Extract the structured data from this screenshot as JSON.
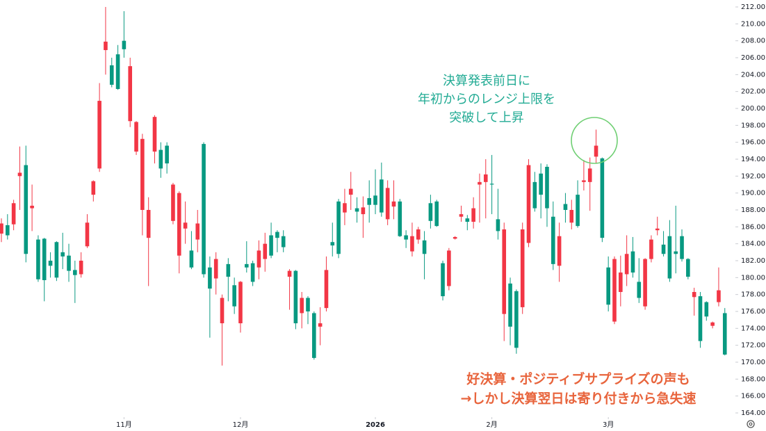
{
  "chart_data": {
    "type": "candlestick",
    "up_color": "#089981",
    "down_color": "#f23645",
    "ylim": [
      164,
      212
    ],
    "yticks": [
      {
        "value": 164,
        "label": "164.00"
      },
      {
        "value": 166,
        "label": "166.00"
      },
      {
        "value": 168,
        "label": "168.00"
      },
      {
        "value": 170,
        "label": "170.00"
      },
      {
        "value": 172,
        "label": "172.00"
      },
      {
        "value": 174,
        "label": "174.00"
      },
      {
        "value": 176,
        "label": "176.00"
      },
      {
        "value": 178,
        "label": "178.00"
      },
      {
        "value": 180,
        "label": "180.00"
      },
      {
        "value": 182,
        "label": "182.00"
      },
      {
        "value": 184,
        "label": "184.00"
      },
      {
        "value": 186,
        "label": "186.00"
      },
      {
        "value": 188,
        "label": "188.00"
      },
      {
        "value": 190,
        "label": "190.00"
      },
      {
        "value": 192,
        "label": "192.00"
      },
      {
        "value": 194,
        "label": "194.00"
      },
      {
        "value": 196,
        "label": "196.00"
      },
      {
        "value": 198,
        "label": "198.00"
      },
      {
        "value": 200,
        "label": "200.00"
      },
      {
        "value": 202,
        "label": "202.00"
      },
      {
        "value": 204,
        "label": "204.00"
      },
      {
        "value": 206,
        "label": "206.00"
      },
      {
        "value": 208,
        "label": "208.00"
      },
      {
        "value": 210,
        "label": "210.00"
      },
      {
        "value": 212,
        "label": "212.00"
      }
    ],
    "xticks": [
      {
        "value": 20,
        "label": "11月"
      },
      {
        "value": 39,
        "label": "12月"
      },
      {
        "value": 61,
        "label": "2026"
      },
      {
        "value": 80,
        "label": "2月"
      },
      {
        "value": 99,
        "label": "3月"
      }
    ],
    "open": [
      186.4,
      185,
      188.8,
      192.4,
      182.8,
      188.5,
      179.8,
      179.7,
      181.4,
      180,
      182.5,
      180.8,
      180.3,
      182,
      186.5,
      191.4,
      200.9,
      207.9,
      202.8,
      202.3,
      207,
      205,
      198.4,
      196.4,
      188,
      199,
      192.9,
      193.5,
      191,
      190,
      186.5,
      181.2,
      186.4,
      180.4,
      178.7,
      182.2,
      177.6,
      180.1,
      176.6,
      179.5,
      181.2,
      179.5,
      183.2,
      184,
      182.6,
      184.7,
      183.6,
      180.8,
      174.6,
      177.6,
      176,
      170.5,
      174.6,
      180.9,
      183.8,
      182.8,
      188.8,
      190.5,
      187.8,
      188.3,
      188.6,
      188.6,
      187.7,
      190.6,
      189,
      184.9,
      184.5,
      184.9,
      185.7,
      182.8,
      186.7,
      186.1,
      177.8,
      183.2,
      184.8,
      187.5,
      186.6,
      188.2,
      191.3,
      192.2,
      191,
      185.5,
      185.7,
      174.2,
      171.7,
      185.7,
      193.3,
      188.2,
      189.8,
      188.2,
      181.6,
      184.9,
      188,
      188,
      186.1,
      191.5,
      192.9,
      195.6,
      184.7,
      176.8,
      182.2,
      180.6,
      182.8,
      180.6,
      177.6,
      182.2,
      184.5,
      185.8,
      182.8,
      179.9,
      182.8,
      182.2,
      180.1,
      178.3,
      172.5,
      175.4,
      174.7,
      178.5,
      170.9
    ],
    "high": [
      187,
      187.5,
      189.2,
      195.5,
      195.6,
      191,
      185,
      184.7,
      183,
      184.3,
      185.3,
      184,
      182,
      183,
      187.5,
      191.5,
      203,
      212,
      206,
      207.5,
      211.5,
      206,
      198.5,
      197,
      189.5,
      199.2,
      196,
      196,
      191.2,
      190.2,
      189,
      185.5,
      188,
      196,
      182.5,
      183,
      178,
      182.3,
      180,
      179.6,
      184.3,
      182,
      184.4,
      185.3,
      186.5,
      185.6,
      185.6,
      181,
      180.9,
      178.3,
      177.8,
      176,
      176.5,
      182.5,
      186.5,
      189.3,
      190.5,
      192.5,
      189.5,
      189.6,
      191.5,
      192.8,
      193.6,
      191.5,
      191.5,
      189.3,
      185.6,
      186.5,
      186,
      185.5,
      189.8,
      189.2,
      182,
      183.5,
      184.9,
      188.5,
      187.4,
      189.5,
      192.3,
      194,
      194.5,
      190.5,
      186.5,
      180,
      178.6,
      186.5,
      194,
      192.5,
      193.5,
      193.4,
      189,
      186.5,
      190,
      189.2,
      191.5,
      193.9,
      194.2,
      197.5,
      194.2,
      182.5,
      182.5,
      182.6,
      185,
      184.8,
      182.3,
      182.3,
      185,
      187.2,
      185.5,
      186.8,
      188.5,
      185.7,
      182.3,
      178.8,
      178.3,
      177.2,
      174.8,
      181.2,
      176.4
    ],
    "low": [
      184.2,
      184.5,
      185.6,
      188,
      181.8,
      185.5,
      179.5,
      177.2,
      180,
      179.6,
      181,
      179.5,
      177,
      180,
      183.5,
      189,
      192.5,
      204,
      202.5,
      202.2,
      206,
      197.8,
      194.5,
      185,
      179,
      193.5,
      191.8,
      192.3,
      186.3,
      180.5,
      184,
      181,
      183,
      180,
      172.9,
      178,
      169.6,
      177.2,
      175.7,
      173.5,
      180.6,
      179,
      179.8,
      180.7,
      182.3,
      183,
      183,
      176.2,
      173.9,
      174,
      174.5,
      170.3,
      172,
      176,
      182.5,
      182.3,
      186.2,
      188,
      186.5,
      184.7,
      186.5,
      187.5,
      187.2,
      186.2,
      186.9,
      184.8,
      183.5,
      182.5,
      184,
      179.8,
      185.8,
      186,
      177.3,
      178.5,
      184.5,
      186.6,
      185.6,
      185.8,
      186.5,
      187,
      187.5,
      184.5,
      172.5,
      172,
      171,
      175.7,
      183.6,
      187.8,
      187,
      186,
      180.9,
      179.5,
      186.5,
      185.7,
      185.9,
      190.3,
      187.9,
      193.5,
      184.2,
      176,
      174.5,
      176.6,
      179,
      180,
      177,
      176.2,
      181.8,
      185,
      182.5,
      179.5,
      180.5,
      181.9,
      179.8,
      175.5,
      171.7,
      174.9,
      174,
      176.6,
      170.8
    ],
    "close": [
      185.2,
      186.2,
      186.3,
      192,
      193.3,
      188.2,
      184.5,
      184.6,
      182,
      184.2,
      183,
      182.6,
      180.9,
      180.4,
      183.7,
      189.8,
      192.9,
      206.9,
      205.1,
      206.4,
      208,
      198.5,
      194.9,
      188,
      184.7,
      194.9,
      195.1,
      195.6,
      186.7,
      182.6,
      185.8,
      183.2,
      184.5,
      195.8,
      181.2,
      179.9,
      174.6,
      181.6,
      179.1,
      174.6,
      181.6,
      181.7,
      181.2,
      182.2,
      185,
      185.4,
      184.9,
      180.1,
      180.8,
      175.8,
      177.6,
      175.8,
      174.2,
      176.4,
      184.2,
      189,
      187.7,
      189.8,
      188.2,
      187.5,
      189.4,
      189.7,
      191.6,
      186.9,
      188.4,
      189,
      185,
      183.1,
      184.5,
      184.4,
      188.8,
      189,
      181.7,
      179,
      184.6,
      187.2,
      187,
      186.6,
      191,
      191.3,
      191.1,
      186.9,
      175.7,
      179.3,
      178.4,
      176.5,
      184.1,
      191.3,
      192.3,
      193.1,
      187.2,
      181.4,
      188.7,
      186.5,
      189.8,
      191.3,
      191.3,
      194.3,
      194.1,
      181.2,
      174.8,
      178.3,
      180.4,
      183.1,
      179.5,
      176.6,
      182.2,
      185.6,
      183.9,
      184.9,
      183.1,
      184.9,
      182.2,
      177.7,
      177.8,
      177.1,
      174.3,
      177.1,
      175.8
    ],
    "annotations": [
      {
        "color": "#22ab94",
        "lines": [
          "決算発表前日に",
          "年初からのレンジ上限を",
          "突破して上昇"
        ]
      },
      {
        "color": "#e8643c",
        "lines": [
          "好決算・ポジティブサプライズの声も",
          "→しかし決算翌日は寄り付きから急失速"
        ]
      }
    ]
  }
}
